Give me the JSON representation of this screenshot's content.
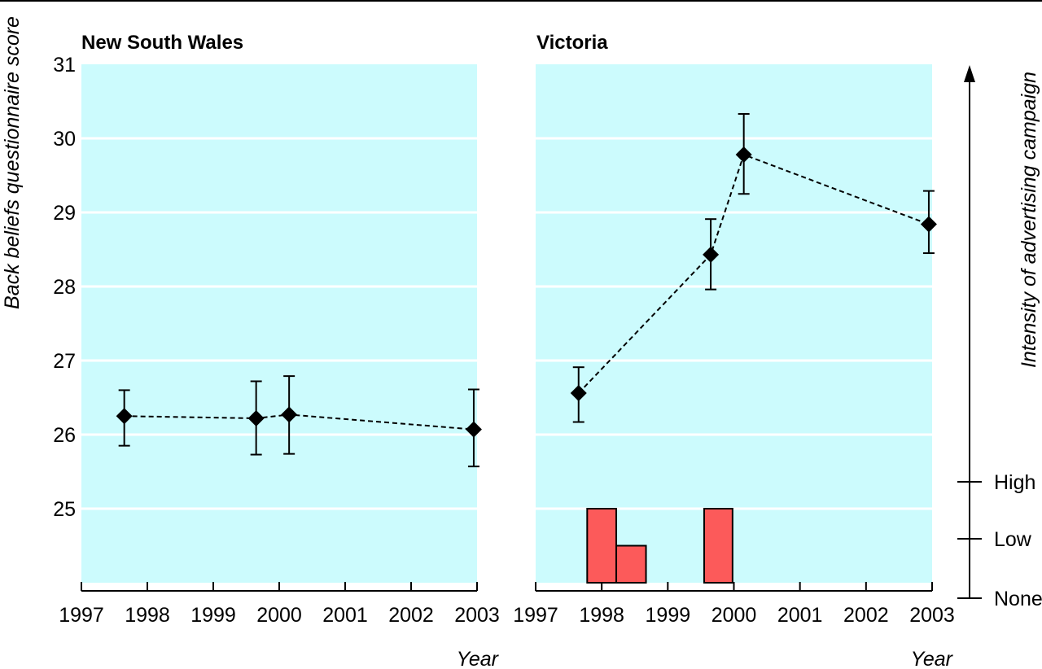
{
  "chart_data": [
    {
      "type": "line",
      "title": "New South Wales",
      "xlabel": "Year",
      "ylabel": "Back beliefs questionnaire score",
      "xlim": [
        1997,
        2003
      ],
      "ylim": [
        24,
        31
      ],
      "x_ticks": [
        "1997",
        "1998",
        "1999",
        "2000",
        "2001",
        "2002",
        "2003"
      ],
      "y_ticks": [
        "25",
        "26",
        "27",
        "28",
        "29",
        "30",
        "31"
      ],
      "grid": true,
      "series": [
        {
          "x": [
            1997.65,
            1999.65,
            2000.15,
            2002.95
          ],
          "y": [
            26.25,
            26.22,
            26.27,
            26.07
          ],
          "ci_low": [
            25.85,
            25.73,
            25.74,
            25.57
          ],
          "ci_high": [
            26.6,
            26.72,
            26.79,
            26.61
          ]
        }
      ]
    },
    {
      "type": "line",
      "title": "Victoria",
      "xlabel": "Year",
      "xlim": [
        1997,
        2003
      ],
      "ylim": [
        24,
        31
      ],
      "x_ticks": [
        "1997",
        "1998",
        "1999",
        "2000",
        "2001",
        "2002",
        "2003"
      ],
      "grid": true,
      "series": [
        {
          "x": [
            1997.65,
            1999.65,
            2000.15,
            2002.95
          ],
          "y": [
            26.56,
            28.43,
            29.78,
            28.84
          ],
          "ci_low": [
            26.17,
            27.96,
            29.25,
            28.45
          ],
          "ci_high": [
            26.91,
            28.91,
            30.33,
            29.29
          ]
        }
      ],
      "campaign_bars": {
        "ylabel": "Intensity of advertising campaign",
        "levels": [
          "None",
          "Low",
          "High"
        ],
        "bars": [
          {
            "start": 1997.78,
            "end": 1998.22,
            "level": 2
          },
          {
            "start": 1998.22,
            "end": 1998.67,
            "level": 1
          },
          {
            "start": 1999.55,
            "end": 1999.98,
            "level": 2
          }
        ]
      }
    }
  ],
  "colors": {
    "panel_bg": "#ccfbfd",
    "grid": "#ffffff",
    "bar_fill": "#fc5a5a",
    "marker": "#000000"
  }
}
